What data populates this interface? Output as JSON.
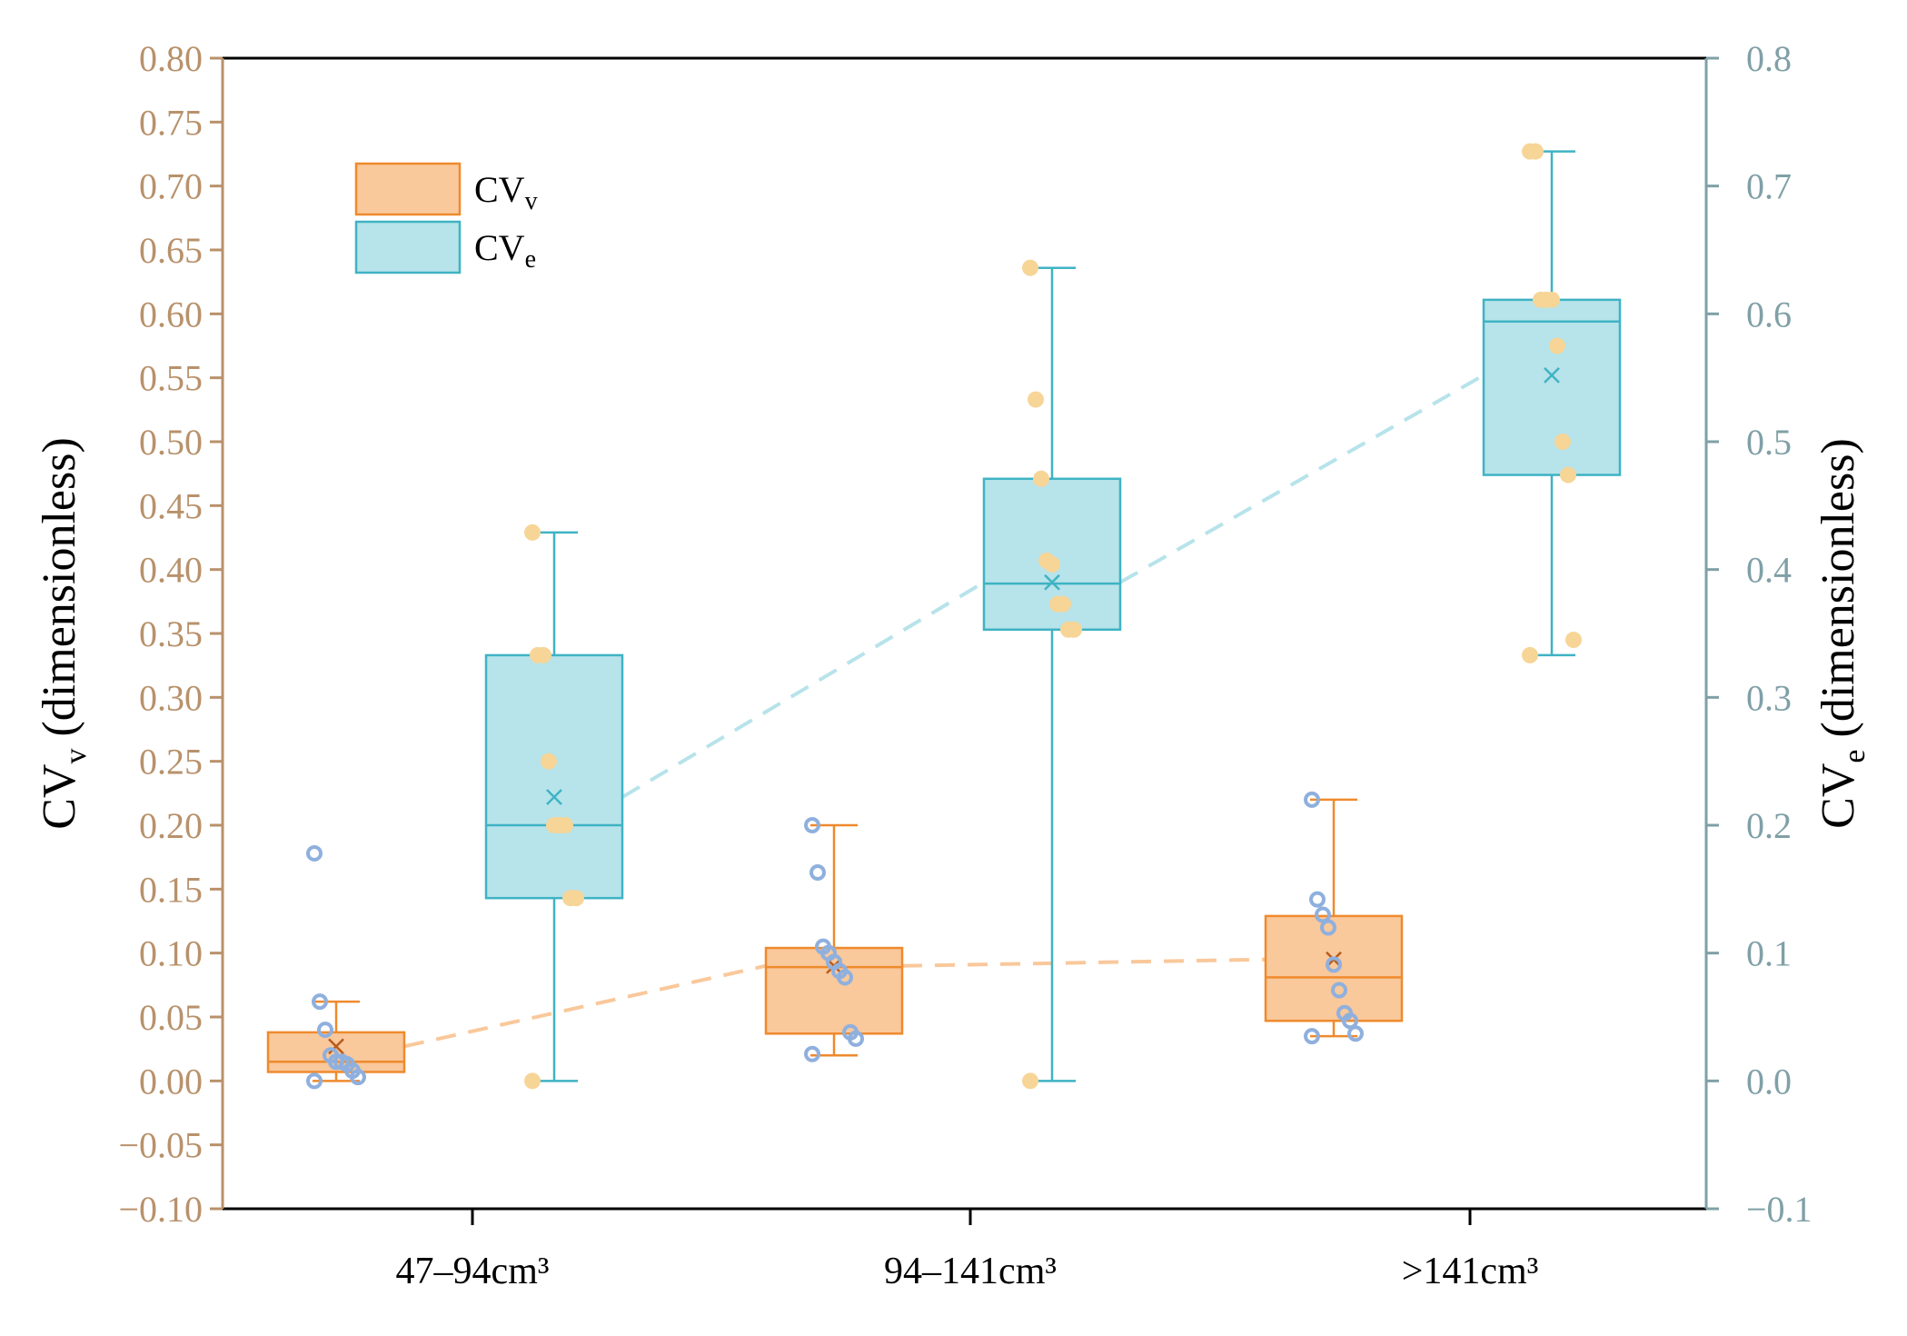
{
  "chart_data": {
    "type": "box",
    "categories": [
      "47–94cm³",
      "94–141cm³",
      ">141cm³"
    ],
    "left_axis": {
      "label_main": "CV",
      "label_sub": "v",
      "label_rest": " (dimensionless)",
      "ylim": [
        -0.1,
        0.8
      ],
      "ticks": [
        "0.80",
        "0.75",
        "0.70",
        "0.65",
        "0.60",
        "0.55",
        "0.50",
        "0.45",
        "0.40",
        "0.35",
        "0.30",
        "0.25",
        "0.20",
        "0.15",
        "0.10",
        "0.05",
        "0.00",
        "−0.05",
        "−0.10"
      ],
      "color": "#b8916b"
    },
    "right_axis": {
      "label_main": "CV",
      "label_sub": "e",
      "label_rest": " (dimensionless)",
      "ylim": [
        -0.1,
        0.8
      ],
      "ticks": [
        "0.8",
        "0.7",
        "0.6",
        "0.5",
        "0.4",
        "0.3",
        "0.2",
        "0.1",
        "0.0",
        "−0.1"
      ],
      "color": "#7fa0a6"
    },
    "legend": [
      {
        "name_main": "CV",
        "name_sub": "v",
        "fill": "#f9c89b",
        "stroke": "#ef8a2d"
      },
      {
        "name_main": "CV",
        "name_sub": "e",
        "fill": "#b7e3ea",
        "stroke": "#3fb3c4"
      }
    ],
    "series": [
      {
        "name": "CVv",
        "axis": "left",
        "fill": "#f9c89b",
        "stroke": "#ef8a2d",
        "point_color": "#8fb0de",
        "point_style": "hollow",
        "boxes": [
          {
            "category": "47–94cm³",
            "whisker_low": 0.0,
            "q1": 0.007,
            "median": 0.015,
            "q3": 0.038,
            "whisker_high": 0.062,
            "mean": 0.027,
            "points": [
              0.178,
              0.062,
              0.04,
              0.02,
              0.015,
              0.015,
              0.013,
              0.008,
              0.003,
              0.0
            ]
          },
          {
            "category": "94–141cm³",
            "whisker_low": 0.02,
            "q1": 0.037,
            "median": 0.089,
            "q3": 0.104,
            "whisker_high": 0.2,
            "mean": 0.09,
            "points": [
              0.2,
              0.163,
              0.105,
              0.1,
              0.093,
              0.086,
              0.081,
              0.038,
              0.033,
              0.021
            ]
          },
          {
            "category": ">141cm³",
            "whisker_low": 0.035,
            "q1": 0.047,
            "median": 0.081,
            "q3": 0.129,
            "whisker_high": 0.22,
            "mean": 0.095,
            "points": [
              0.22,
              0.142,
              0.13,
              0.12,
              0.091,
              0.071,
              0.053,
              0.047,
              0.037,
              0.035
            ]
          }
        ],
        "mean_line": [
          0.027,
          0.09,
          0.095
        ]
      },
      {
        "name": "CVe",
        "axis": "right",
        "fill": "#b7e3ea",
        "stroke": "#3fb3c4",
        "point_color": "#f6d597",
        "point_style": "filled",
        "boxes": [
          {
            "category": "47–94cm³",
            "whisker_low": 0.0,
            "q1": 0.143,
            "median": 0.2,
            "q3": 0.333,
            "whisker_high": 0.429,
            "mean": 0.222,
            "points": [
              0.429,
              0.333,
              0.333,
              0.25,
              0.2,
              0.2,
              0.2,
              0.143,
              0.143,
              0.0
            ]
          },
          {
            "category": "94–141cm³",
            "whisker_low": 0.0,
            "q1": 0.353,
            "median": 0.389,
            "q3": 0.471,
            "whisker_high": 0.636,
            "mean": 0.39,
            "points": [
              0.636,
              0.533,
              0.471,
              0.407,
              0.404,
              0.373,
              0.373,
              0.353,
              0.353,
              0.0
            ]
          },
          {
            "category": ">141cm³",
            "whisker_low": 0.333,
            "q1": 0.474,
            "median": 0.594,
            "q3": 0.611,
            "whisker_high": 0.727,
            "mean": 0.552,
            "points": [
              0.727,
              0.727,
              0.611,
              0.611,
              0.611,
              0.575,
              0.5,
              0.474,
              0.345,
              0.333
            ]
          }
        ],
        "mean_line": [
          0.222,
          0.39,
          0.552
        ]
      }
    ]
  }
}
